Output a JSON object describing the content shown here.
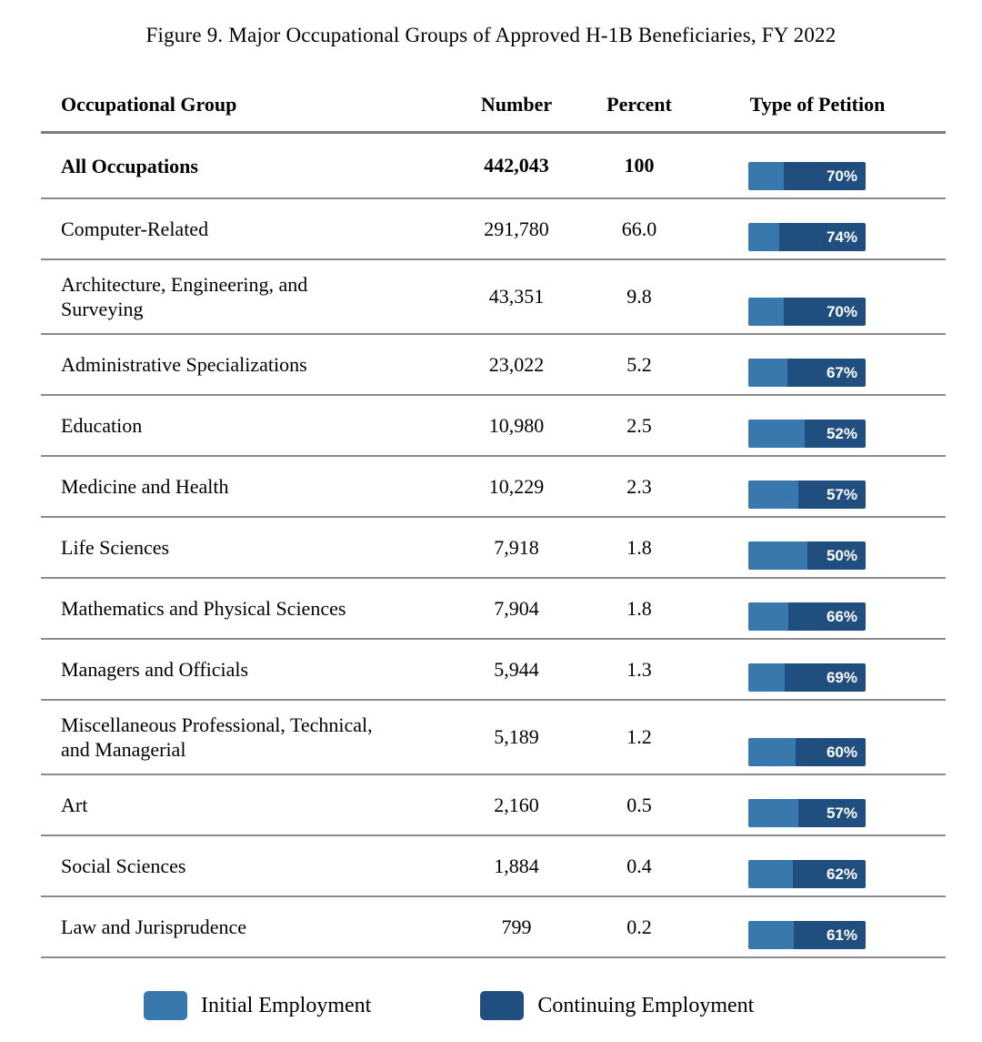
{
  "title": "Figure 9. Major Occupational Groups of Approved H-1B Beneficiaries, FY 2022",
  "colors": {
    "initial_blue": "#3878AD",
    "continuing_blue": "#1F4E7F",
    "separator_gray": "#8A8A8A"
  },
  "table": {
    "headers": {
      "group": "Occupational Group",
      "number": "Number",
      "percent": "Percent",
      "petition": "Type of Petition"
    },
    "rows": [
      {
        "group": "All Occupations",
        "number": "442,043",
        "percent": "100",
        "continuing_pct": 70,
        "bar_label": "70%"
      },
      {
        "group": "Computer-Related",
        "number": "291,780",
        "percent": "66.0",
        "continuing_pct": 74,
        "bar_label": "74%"
      },
      {
        "group": "Architecture, Engineering, and\nSurveying",
        "number": "43,351",
        "percent": "9.8",
        "continuing_pct": 70,
        "bar_label": "70%"
      },
      {
        "group": "Administrative Specializations",
        "number": "23,022",
        "percent": "5.2",
        "continuing_pct": 67,
        "bar_label": "67%"
      },
      {
        "group": "Education",
        "number": "10,980",
        "percent": "2.5",
        "continuing_pct": 52,
        "bar_label": "52%"
      },
      {
        "group": "Medicine and Health",
        "number": "10,229",
        "percent": "2.3",
        "continuing_pct": 57,
        "bar_label": "57%"
      },
      {
        "group": "Life Sciences",
        "number": "7,918",
        "percent": "1.8",
        "continuing_pct": 50,
        "bar_label": "50%"
      },
      {
        "group": "Mathematics and Physical Sciences",
        "number": "7,904",
        "percent": "1.8",
        "continuing_pct": 66,
        "bar_label": "66%"
      },
      {
        "group": "Managers and Officials",
        "number": "5,944",
        "percent": "1.3",
        "continuing_pct": 69,
        "bar_label": "69%"
      },
      {
        "group": "Miscellaneous Professional, Technical,\nand Managerial",
        "number": "5,189",
        "percent": "1.2",
        "continuing_pct": 60,
        "bar_label": "60%"
      },
      {
        "group": "Art",
        "number": "2,160",
        "percent": "0.5",
        "continuing_pct": 57,
        "bar_label": "57%"
      },
      {
        "group": "Social Sciences",
        "number": "1,884",
        "percent": "0.4",
        "continuing_pct": 62,
        "bar_label": "62%"
      },
      {
        "group": "Law and Jurisprudence",
        "number": "799",
        "percent": "0.2",
        "continuing_pct": 61,
        "bar_label": "61%"
      }
    ]
  },
  "legend": {
    "initial": "Initial Employment",
    "continuing": "Continuing Employment"
  },
  "chart_data": {
    "type": "bar",
    "subtype": "horizontal-100pct-stacked-per-row",
    "title": "Figure 9. Major Occupational Groups of Approved H-1B Beneficiaries, FY 2022",
    "categories": [
      "All Occupations",
      "Computer-Related",
      "Architecture, Engineering, and Surveying",
      "Administrative Specializations",
      "Education",
      "Medicine and Health",
      "Life Sciences",
      "Mathematics and Physical Sciences",
      "Managers and Officials",
      "Miscellaneous Professional, Technical, and Managerial",
      "Art",
      "Social Sciences",
      "Law and Jurisprudence"
    ],
    "series": [
      {
        "name": "Number",
        "values": [
          442043,
          291780,
          43351,
          23022,
          10980,
          10229,
          7918,
          7904,
          5944,
          5189,
          2160,
          1884,
          799
        ]
      },
      {
        "name": "Percent",
        "values": [
          100,
          66.0,
          9.8,
          5.2,
          2.5,
          2.3,
          1.8,
          1.8,
          1.3,
          1.2,
          0.5,
          0.4,
          0.2
        ]
      },
      {
        "name": "Initial Employment %",
        "values": [
          30,
          26,
          30,
          33,
          48,
          43,
          50,
          34,
          31,
          40,
          43,
          38,
          39
        ]
      },
      {
        "name": "Continuing Employment %",
        "values": [
          70,
          74,
          70,
          67,
          52,
          57,
          50,
          66,
          69,
          60,
          57,
          62,
          61
        ]
      }
    ],
    "legend_entries": [
      "Initial Employment",
      "Continuing Employment"
    ],
    "legend_position": "bottom",
    "grid": false,
    "notes": "Each row's bar is a fixed-width 100% stacked bar; dark segment labeled with Continuing Employment share."
  }
}
